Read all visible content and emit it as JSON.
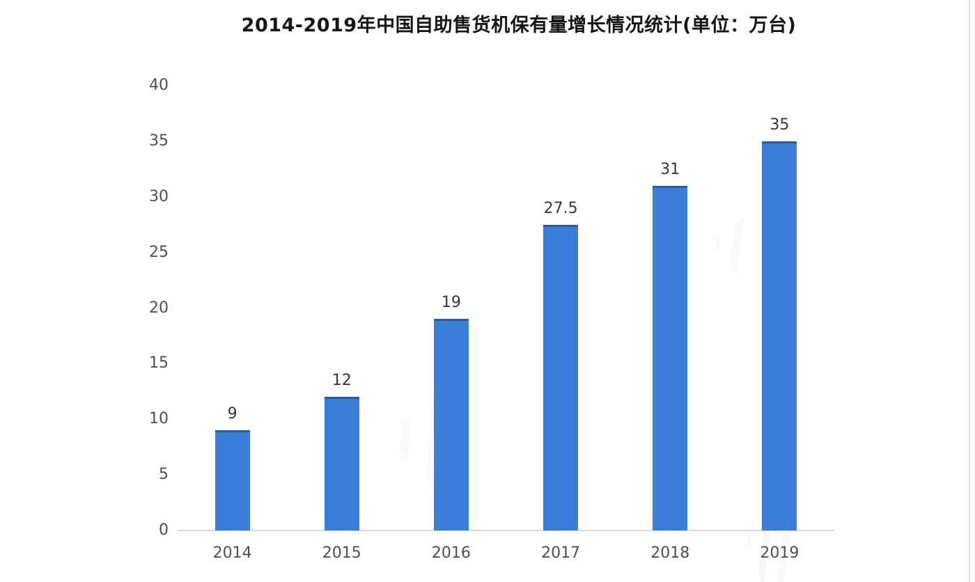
{
  "title": "2014-2019年中国自助售货机保有量增长情况统计(单位：万台)",
  "chart_data": {
    "type": "bar",
    "title": "2014-2019年中国自助售货机保有量增长情况统计(单位：万台)",
    "categories": [
      "2014",
      "2015",
      "2016",
      "2017",
      "2018",
      "2019"
    ],
    "values": [
      9,
      12,
      19,
      27.5,
      31,
      35
    ],
    "value_labels": [
      "9",
      "12",
      "19",
      "27.5",
      "31",
      "35"
    ],
    "xlabel": "",
    "ylabel": "",
    "ylim": [
      0,
      40
    ],
    "yticks": [
      0,
      5,
      10,
      15,
      20,
      25,
      30,
      35,
      40
    ],
    "grid": false,
    "legend": false,
    "unit": "万台",
    "colors": {
      "bar": "#3d7dda",
      "bar_top_edge": "#2a3c5c",
      "axis_line": "#d9d9d9",
      "tick_label": "#4f4f4f",
      "data_label": "#363636",
      "title": "#161616",
      "background": "#ffffff"
    }
  }
}
